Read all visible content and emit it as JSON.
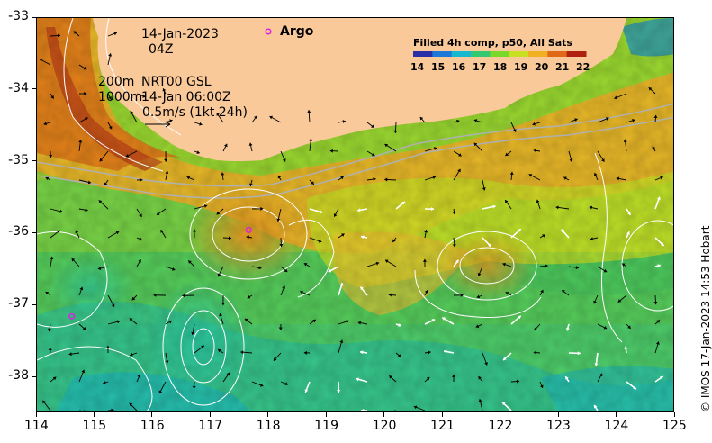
{
  "overlay": {
    "date_line": "14-Jan-2023",
    "hour_line": "04Z",
    "isobath_shallow": "200m",
    "isobath_deep": "1000m",
    "altimetry_label": "NRT00 GSL",
    "altimetry_time": "14-Jan 06:00Z",
    "vector_scale": "0.5m/s (1kt 24h)",
    "argo_label": "Argo"
  },
  "colorbar": {
    "title": "Filled 4h comp, p50, All Sats",
    "ticks": [
      "14",
      "15",
      "16",
      "17",
      "18",
      "19",
      "20",
      "21",
      "22"
    ],
    "colors": [
      "#2a2fa8",
      "#1e78d8",
      "#18b8d0",
      "#34c870",
      "#7ad82a",
      "#c8e020",
      "#f0b020",
      "#e06818",
      "#b02010"
    ]
  },
  "credit": "© IMOS 17-Jan-2023 14:53 Hobart",
  "axes": {
    "x_ticks": [
      "114",
      "115",
      "116",
      "117",
      "118",
      "119",
      "120",
      "121",
      "122",
      "123",
      "124",
      "125"
    ],
    "y_ticks": [
      "-33",
      "-34",
      "-35",
      "-36",
      "-37",
      "-38"
    ],
    "x_range": [
      114,
      125
    ],
    "y_range": [
      -38.5,
      -33
    ]
  },
  "argo_floats": [
    {
      "lon": 117.65,
      "lat": -35.95
    },
    {
      "lon": 114.6,
      "lat": -37.15
    }
  ],
  "colors": {
    "land": "#f9c99a",
    "argo_marker": "#e020e0",
    "contour": "#ffffff",
    "isobath": "#b0b0b0"
  }
}
